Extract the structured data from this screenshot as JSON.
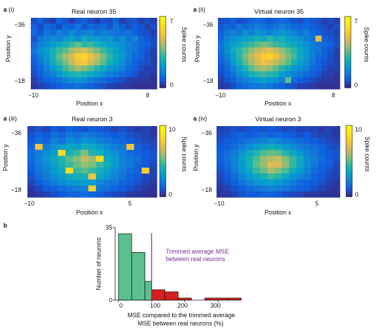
{
  "panels": [
    {
      "letter": "a",
      "sub": "(i)",
      "title": "Real neuron 35",
      "x_ticks": [
        "−10",
        "8"
      ],
      "y_ticks": [
        "−36",
        "−18"
      ],
      "xlabel": "Position x",
      "ylabel": "Position y",
      "colorbar_label": "Spike counts",
      "colorbar_ticks": [
        "7",
        "0"
      ],
      "cmax": 7
    },
    {
      "letter": "a",
      "sub": "(ii)",
      "title": "Virtual neuron 35",
      "x_ticks": [
        "−10",
        "8"
      ],
      "y_ticks": [
        "−36",
        "−18"
      ],
      "xlabel": "Position x",
      "ylabel": "Position y",
      "colorbar_label": "Spike counts",
      "colorbar_ticks": [
        "7",
        "0"
      ],
      "cmax": 7
    },
    {
      "letter": "a",
      "sub": "(iii)",
      "title": "Real neuron 3",
      "x_ticks": [
        "−10",
        "5"
      ],
      "y_ticks": [
        "−36",
        "−18"
      ],
      "xlabel": "Position x",
      "ylabel": "Position y",
      "colorbar_label": "Spike counts",
      "colorbar_ticks": [
        "10",
        "0"
      ],
      "cmax": 10
    },
    {
      "letter": "a",
      "sub": "(iv)",
      "title": "Virtual neuron 3",
      "x_ticks": [
        "−10",
        "5"
      ],
      "y_ticks": [
        "−36",
        "−18"
      ],
      "xlabel": "Position x",
      "ylabel": "Position y",
      "colorbar_label": "Spike counts",
      "colorbar_ticks": [
        "10",
        "0"
      ],
      "cmax": 10
    }
  ],
  "hist": {
    "letter": "b",
    "y_ticks": [
      "35",
      "0"
    ],
    "x_ticks": [
      "0",
      "100",
      "200",
      "300"
    ],
    "ylabel": "Number of neurons",
    "xlabel_line1": "MSE compared to the trimmed average",
    "xlabel_line2": "MSE between real neurons (%)",
    "annotation_line1": "Trimmed average MSE",
    "annotation_line2": "between real neurons"
  },
  "colors": {
    "green_bar": "#5bbf8f",
    "red_bar": "#d71f1f",
    "threshold_line": "#7a2a9a",
    "annotation_text": "#7a2a9a"
  },
  "chart_data": [
    {
      "type": "heatmap",
      "title": "Real neuron 35",
      "xlabel": "Position x",
      "ylabel": "Position y",
      "xlim": [
        -10,
        8
      ],
      "ylim": [
        -36,
        -18
      ],
      "colorbar": {
        "label": "Spike counts",
        "range": [
          0,
          7
        ]
      },
      "grid": [
        [
          0.5,
          0.8,
          0.5,
          0.3,
          0.8,
          0.6,
          0.3,
          0.6,
          0.8,
          0.5,
          0.3,
          0.6,
          0.5,
          0.8,
          0.3,
          0.5,
          0.6,
          0.3,
          0.5,
          0.3
        ],
        [
          0.8,
          0.5,
          1.0,
          0.8,
          0.5,
          1.0,
          0.8,
          1.2,
          0.6,
          1.0,
          0.8,
          1.0,
          0.6,
          1.2,
          0.8,
          0.5,
          0.8,
          0.6,
          0.3,
          0.5
        ],
        [
          1.0,
          0.6,
          1.2,
          1.0,
          1.5,
          1.2,
          1.7,
          1.3,
          1.5,
          1.7,
          1.2,
          1.5,
          1.3,
          1.2,
          1.0,
          1.2,
          0.8,
          0.6,
          0.5,
          0.3
        ],
        [
          0.6,
          1.2,
          1.5,
          1.8,
          1.5,
          2.0,
          2.2,
          1.8,
          2.5,
          2.0,
          2.2,
          1.8,
          2.0,
          1.5,
          1.8,
          1.2,
          1.5,
          0.8,
          0.6,
          0.5
        ],
        [
          1.0,
          1.5,
          1.8,
          2.2,
          2.5,
          2.8,
          3.2,
          3.5,
          3.0,
          3.2,
          2.8,
          2.5,
          2.2,
          2.0,
          1.8,
          1.5,
          1.2,
          1.0,
          0.8,
          0.5
        ],
        [
          1.2,
          1.8,
          2.2,
          2.8,
          3.2,
          3.5,
          4.2,
          4.5,
          4.8,
          4.2,
          3.8,
          3.2,
          2.8,
          2.2,
          1.8,
          1.5,
          1.2,
          0.8,
          0.6,
          0.3
        ],
        [
          1.0,
          1.5,
          2.0,
          2.8,
          3.5,
          4.2,
          4.8,
          5.5,
          5.8,
          5.2,
          4.5,
          3.8,
          3.0,
          2.5,
          2.0,
          1.5,
          1.0,
          0.8,
          0.5,
          0.3
        ],
        [
          0.8,
          1.2,
          1.8,
          2.5,
          3.2,
          3.8,
          4.5,
          5.2,
          5.5,
          4.8,
          4.2,
          3.5,
          2.8,
          2.2,
          1.8,
          1.2,
          0.8,
          0.6,
          0.5,
          0.3
        ],
        [
          0.6,
          1.0,
          1.5,
          2.0,
          2.5,
          3.2,
          3.8,
          4.2,
          3.8,
          3.5,
          3.0,
          2.5,
          2.0,
          1.8,
          1.5,
          1.0,
          0.8,
          0.5,
          0.3,
          0.3
        ],
        [
          0.5,
          0.8,
          1.2,
          1.5,
          2.0,
          2.5,
          2.8,
          3.0,
          2.8,
          2.5,
          2.2,
          1.8,
          1.5,
          1.2,
          1.0,
          0.8,
          0.6,
          0.3,
          0.3,
          0.2
        ],
        [
          0.3,
          0.6,
          0.8,
          1.0,
          1.2,
          1.5,
          1.8,
          2.0,
          1.8,
          1.5,
          1.2,
          1.0,
          0.8,
          0.6,
          0.5,
          0.3,
          0.3,
          0.2,
          0.2,
          0.1
        ],
        [
          0.2,
          0.3,
          0.5,
          0.6,
          0.8,
          1.0,
          1.0,
          1.2,
          1.0,
          0.8,
          0.6,
          0.5,
          0.3,
          0.3,
          0.2,
          0.2,
          0.1,
          0.1,
          0.1,
          0.1
        ]
      ]
    },
    {
      "type": "heatmap",
      "title": "Virtual neuron 35",
      "xlabel": "Position x",
      "ylabel": "Position y",
      "xlim": [
        -10,
        8
      ],
      "ylim": [
        -36,
        -18
      ],
      "colorbar": {
        "label": "Spike counts",
        "range": [
          0,
          7
        ]
      },
      "grid": [
        [
          0.5,
          0.6,
          0.8,
          0.5,
          0.6,
          0.8,
          1.0,
          0.8,
          0.6,
          0.8,
          1.0,
          0.8,
          0.6,
          0.5,
          0.8,
          0.6,
          0.5,
          0.3,
          0.5,
          0.3
        ],
        [
          0.6,
          1.0,
          0.8,
          1.2,
          1.0,
          1.2,
          1.5,
          1.2,
          1.0,
          1.2,
          1.5,
          1.2,
          1.0,
          0.8,
          1.0,
          0.8,
          0.6,
          0.5,
          0.3,
          0.5
        ],
        [
          0.8,
          1.2,
          1.5,
          1.2,
          1.8,
          1.5,
          2.0,
          1.8,
          1.5,
          1.8,
          2.0,
          1.8,
          1.5,
          1.2,
          1.5,
          1.0,
          0.8,
          0.6,
          0.5,
          0.3
        ],
        [
          1.0,
          1.5,
          1.8,
          2.0,
          2.2,
          2.5,
          2.8,
          2.5,
          3.0,
          2.5,
          2.8,
          2.2,
          2.0,
          1.8,
          1.5,
          1.2,
          5.0,
          0.8,
          0.6,
          0.5
        ],
        [
          1.2,
          1.8,
          2.2,
          2.5,
          3.0,
          3.2,
          3.5,
          3.8,
          3.5,
          3.2,
          3.0,
          2.8,
          2.5,
          2.2,
          1.8,
          1.5,
          1.2,
          1.0,
          0.8,
          0.5
        ],
        [
          1.2,
          1.8,
          2.5,
          3.0,
          3.5,
          4.0,
          4.5,
          4.8,
          5.0,
          4.5,
          4.0,
          3.5,
          3.0,
          2.5,
          2.0,
          1.5,
          1.2,
          0.8,
          0.6,
          0.3
        ],
        [
          1.0,
          1.5,
          2.2,
          3.0,
          3.8,
          4.5,
          5.0,
          5.5,
          5.8,
          5.2,
          4.5,
          3.8,
          3.2,
          2.5,
          2.0,
          1.5,
          1.0,
          0.8,
          0.5,
          0.3
        ],
        [
          0.8,
          1.2,
          2.0,
          2.8,
          3.5,
          4.2,
          4.8,
          5.2,
          5.0,
          4.5,
          4.0,
          3.5,
          2.8,
          2.2,
          1.8,
          1.2,
          0.8,
          0.6,
          0.5,
          0.3
        ],
        [
          0.6,
          1.0,
          1.5,
          2.2,
          2.8,
          3.5,
          4.0,
          4.2,
          4.0,
          3.5,
          3.0,
          2.5,
          2.0,
          1.8,
          1.5,
          1.0,
          0.8,
          0.5,
          0.3,
          0.3
        ],
        [
          0.5,
          0.8,
          1.2,
          1.8,
          2.2,
          2.8,
          3.0,
          3.2,
          3.0,
          2.8,
          2.2,
          1.8,
          1.5,
          1.2,
          1.0,
          0.8,
          0.6,
          0.3,
          0.3,
          0.2
        ],
        [
          0.3,
          0.6,
          0.8,
          1.2,
          1.5,
          1.8,
          2.0,
          2.2,
          2.0,
          1.8,
          1.5,
          3.5,
          1.0,
          0.8,
          0.6,
          0.5,
          0.3,
          0.2,
          0.2,
          0.1
        ],
        [
          0.2,
          0.3,
          0.5,
          0.8,
          1.0,
          1.2,
          1.2,
          1.5,
          1.2,
          1.0,
          0.8,
          0.6,
          0.5,
          0.3,
          0.3,
          0.2,
          0.1,
          0.1,
          0.1,
          0.1
        ]
      ]
    },
    {
      "type": "heatmap",
      "title": "Real neuron 3",
      "xlabel": "Position x",
      "ylabel": "Position y",
      "xlim": [
        -10,
        5
      ],
      "ylim": [
        -36,
        -18
      ],
      "colorbar": {
        "label": "Spike counts",
        "range": [
          0,
          10
        ]
      },
      "grid": [
        [
          0.5,
          0.8,
          0.5,
          1.0,
          0.8,
          1.2,
          1.0,
          0.8,
          1.2,
          1.0,
          0.8,
          0.5,
          0.8,
          0.5,
          0.3,
          0.5,
          0.3
        ],
        [
          0.8,
          1.2,
          1.0,
          1.5,
          1.2,
          1.8,
          1.5,
          2.0,
          1.8,
          1.5,
          1.2,
          1.0,
          1.2,
          0.8,
          0.6,
          0.5,
          0.3
        ],
        [
          1.0,
          1.5,
          1.2,
          2.0,
          1.8,
          2.5,
          2.2,
          2.8,
          2.5,
          2.2,
          1.8,
          1.5,
          1.2,
          1.0,
          0.8,
          0.6,
          0.5
        ],
        [
          1.2,
          7.5,
          2.0,
          2.5,
          3.0,
          3.5,
          3.2,
          3.8,
          3.5,
          3.2,
          2.5,
          2.0,
          1.8,
          7.5,
          1.2,
          0.8,
          0.6
        ],
        [
          1.5,
          2.0,
          2.5,
          3.0,
          8.5,
          4.0,
          4.5,
          5.5,
          4.2,
          3.8,
          3.0,
          2.5,
          2.0,
          1.5,
          1.2,
          1.0,
          0.8
        ],
        [
          1.5,
          2.2,
          2.8,
          3.5,
          4.2,
          5.0,
          5.5,
          6.5,
          5.8,
          8.5,
          3.5,
          3.0,
          2.2,
          1.8,
          1.5,
          1.0,
          0.8
        ],
        [
          1.2,
          2.0,
          2.5,
          3.2,
          4.0,
          4.5,
          5.2,
          5.8,
          5.5,
          4.5,
          3.8,
          3.0,
          2.2,
          1.8,
          1.2,
          1.0,
          0.6
        ],
        [
          1.0,
          1.8,
          2.2,
          3.0,
          3.5,
          8.5,
          4.5,
          5.0,
          4.5,
          4.0,
          3.2,
          2.5,
          2.0,
          1.5,
          1.2,
          8.0,
          0.5
        ],
        [
          0.8,
          1.5,
          2.0,
          2.5,
          3.0,
          3.5,
          3.8,
          4.0,
          7.5,
          3.5,
          2.8,
          2.2,
          1.8,
          1.2,
          1.0,
          0.6,
          0.5
        ],
        [
          0.6,
          1.0,
          1.5,
          2.0,
          2.5,
          2.8,
          3.0,
          3.2,
          3.0,
          2.5,
          2.0,
          1.8,
          1.2,
          1.0,
          0.8,
          0.5,
          0.3
        ],
        [
          0.3,
          0.6,
          1.0,
          1.2,
          1.5,
          1.8,
          2.0,
          2.2,
          8.0,
          1.8,
          1.5,
          1.2,
          1.0,
          0.8,
          0.5,
          0.3,
          0.2
        ],
        [
          0.2,
          0.3,
          0.5,
          0.8,
          1.0,
          1.2,
          1.2,
          1.5,
          1.2,
          1.0,
          0.8,
          0.6,
          0.5,
          0.3,
          0.2,
          0.2,
          0.1
        ]
      ]
    },
    {
      "type": "heatmap",
      "title": "Virtual neuron 3",
      "xlabel": "Position x",
      "ylabel": "Position y",
      "xlim": [
        -10,
        5
      ],
      "ylim": [
        -36,
        -18
      ],
      "colorbar": {
        "label": "Spike counts",
        "range": [
          0,
          10
        ]
      },
      "grid": [
        [
          0.5,
          0.6,
          0.8,
          0.6,
          0.8,
          1.0,
          0.8,
          1.0,
          0.8,
          0.6,
          0.8,
          0.5,
          0.6,
          0.5,
          0.3,
          0.5,
          0.3
        ],
        [
          0.6,
          0.8,
          1.0,
          1.2,
          1.0,
          1.2,
          1.5,
          1.2,
          1.5,
          1.2,
          1.0,
          0.8,
          1.0,
          0.6,
          0.5,
          0.5,
          0.3
        ],
        [
          0.8,
          1.0,
          1.2,
          1.5,
          1.8,
          2.0,
          2.2,
          2.5,
          2.2,
          2.0,
          1.8,
          1.5,
          1.2,
          1.0,
          0.8,
          0.6,
          0.5
        ],
        [
          1.0,
          1.2,
          1.5,
          2.0,
          2.5,
          3.0,
          3.5,
          3.8,
          3.5,
          3.0,
          2.5,
          2.0,
          1.8,
          1.5,
          1.2,
          0.8,
          0.6
        ],
        [
          1.2,
          1.5,
          2.0,
          2.8,
          3.5,
          4.2,
          4.8,
          5.2,
          5.0,
          4.2,
          3.5,
          2.8,
          2.2,
          1.8,
          1.2,
          1.0,
          0.8
        ],
        [
          1.2,
          1.8,
          2.2,
          3.2,
          4.0,
          4.8,
          5.8,
          6.2,
          6.5,
          5.5,
          4.5,
          3.5,
          2.5,
          2.0,
          1.5,
          1.0,
          0.8
        ],
        [
          1.0,
          1.5,
          2.2,
          3.0,
          4.0,
          5.0,
          5.8,
          7.0,
          6.8,
          5.8,
          4.5,
          3.5,
          2.5,
          1.8,
          1.2,
          1.0,
          0.6
        ],
        [
          0.8,
          1.2,
          2.0,
          2.8,
          3.5,
          4.5,
          5.2,
          6.0,
          5.5,
          4.8,
          3.8,
          3.0,
          2.2,
          1.5,
          1.2,
          0.8,
          0.5
        ],
        [
          0.6,
          1.0,
          1.5,
          2.2,
          3.0,
          3.5,
          4.0,
          4.5,
          4.2,
          3.5,
          2.8,
          2.2,
          1.8,
          1.2,
          1.0,
          0.6,
          0.5
        ],
        [
          0.5,
          0.8,
          1.2,
          1.8,
          2.2,
          2.8,
          3.0,
          3.2,
          3.0,
          2.5,
          2.0,
          1.5,
          1.2,
          1.0,
          0.8,
          0.5,
          0.3
        ],
        [
          0.3,
          0.5,
          0.8,
          1.0,
          1.5,
          1.8,
          2.0,
          2.2,
          2.0,
          1.8,
          1.5,
          1.2,
          1.0,
          0.8,
          0.5,
          0.3,
          0.2
        ],
        [
          0.2,
          0.3,
          0.5,
          0.8,
          1.0,
          1.0,
          1.2,
          1.2,
          1.0,
          0.8,
          0.6,
          0.5,
          0.3,
          0.3,
          0.2,
          0.2,
          0.1
        ]
      ]
    },
    {
      "type": "bar",
      "xlabel": "MSE compared to the trimmed average MSE between real neurons (%)",
      "ylabel": "Number of neurons",
      "xlim": [
        -10,
        370
      ],
      "ylim": [
        0,
        35
      ],
      "threshold": 100,
      "bins": [
        {
          "x0": 0,
          "x1": 40,
          "count": 32,
          "group": "below"
        },
        {
          "x0": 40,
          "x1": 80,
          "count": 23,
          "group": "below"
        },
        {
          "x0": 80,
          "x1": 100,
          "count": 9,
          "group": "below"
        },
        {
          "x0": 100,
          "x1": 140,
          "count": 5,
          "group": "above"
        },
        {
          "x0": 140,
          "x1": 180,
          "count": 4,
          "group": "above"
        },
        {
          "x0": 180,
          "x1": 220,
          "count": 1,
          "group": "above"
        },
        {
          "x0": 220,
          "x1": 260,
          "count": 0,
          "group": "above"
        },
        {
          "x0": 260,
          "x1": 330,
          "count": 1,
          "group": "above"
        },
        {
          "x0": 330,
          "x1": 370,
          "count": 1,
          "group": "above"
        }
      ]
    }
  ]
}
